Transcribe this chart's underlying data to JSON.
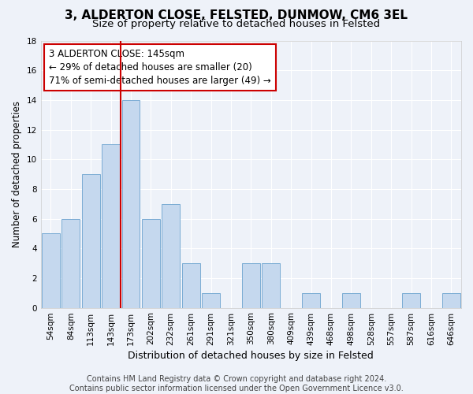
{
  "title": "3, ALDERTON CLOSE, FELSTED, DUNMOW, CM6 3EL",
  "subtitle": "Size of property relative to detached houses in Felsted",
  "xlabel": "Distribution of detached houses by size in Felsted",
  "ylabel": "Number of detached properties",
  "categories": [
    "54sqm",
    "84sqm",
    "113sqm",
    "143sqm",
    "173sqm",
    "202sqm",
    "232sqm",
    "261sqm",
    "291sqm",
    "321sqm",
    "350sqm",
    "380sqm",
    "409sqm",
    "439sqm",
    "468sqm",
    "498sqm",
    "528sqm",
    "557sqm",
    "587sqm",
    "616sqm",
    "646sqm"
  ],
  "values": [
    5,
    6,
    9,
    11,
    14,
    6,
    7,
    3,
    1,
    0,
    3,
    3,
    0,
    1,
    0,
    1,
    0,
    0,
    1,
    0,
    1
  ],
  "bar_color": "#c5d8ee",
  "bar_edgecolor": "#7bacd4",
  "vline_x": 3.5,
  "vline_color": "#cc0000",
  "annotation_line1": "3 ALDERTON CLOSE: 145sqm",
  "annotation_line2": "← 29% of detached houses are smaller (20)",
  "annotation_line3": "71% of semi-detached houses are larger (49) →",
  "ylim": [
    0,
    18
  ],
  "yticks": [
    0,
    2,
    4,
    6,
    8,
    10,
    12,
    14,
    16,
    18
  ],
  "footer_text": "Contains HM Land Registry data © Crown copyright and database right 2024.\nContains public sector information licensed under the Open Government Licence v3.0.",
  "title_fontsize": 11,
  "subtitle_fontsize": 9.5,
  "xlabel_fontsize": 9,
  "ylabel_fontsize": 8.5,
  "tick_fontsize": 7.5,
  "annotation_fontsize": 8.5,
  "footer_fontsize": 7,
  "bg_color": "#eef2f9",
  "plot_bg_color": "#eef2f9",
  "grid_color": "#ffffff"
}
